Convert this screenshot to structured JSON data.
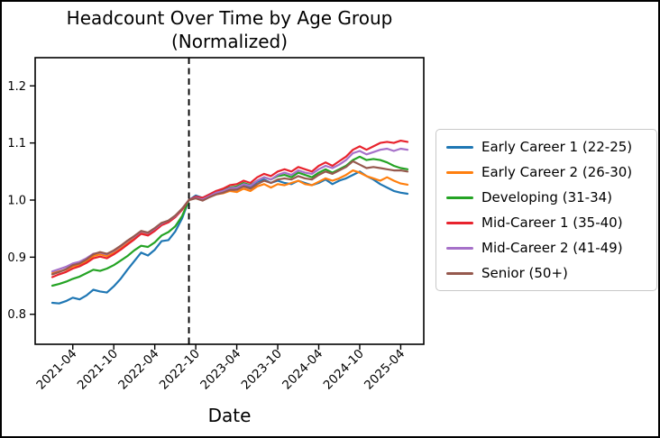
{
  "chart_data": {
    "type": "line",
    "title": "Headcount Over Time by Age Group",
    "subtitle": "(Normalized)",
    "xlabel": "Date",
    "ylabel": "",
    "ylim": [
      0.75,
      1.25
    ],
    "yticks": [
      0.8,
      0.9,
      1.0,
      1.1,
      1.2
    ],
    "xticks": {
      "labels": [
        "2021-04",
        "2021-10",
        "2022-04",
        "2022-10",
        "2023-04",
        "2023-10",
        "2024-04",
        "2024-10",
        "2025-04"
      ],
      "indices": [
        3,
        9,
        15,
        21,
        27,
        33,
        39,
        45,
        51
      ]
    },
    "grid": false,
    "legend_position": "center right, outside axes",
    "normalization_marker": {
      "style": "dashed vertical line",
      "color": "#000000",
      "x": "2022-09"
    },
    "x": [
      "2021-01",
      "2021-02",
      "2021-03",
      "2021-04",
      "2021-05",
      "2021-06",
      "2021-07",
      "2021-08",
      "2021-09",
      "2021-10",
      "2021-11",
      "2021-12",
      "2022-01",
      "2022-02",
      "2022-03",
      "2022-04",
      "2022-05",
      "2022-06",
      "2022-07",
      "2022-08",
      "2022-09",
      "2022-10",
      "2022-11",
      "2022-12",
      "2023-01",
      "2023-02",
      "2023-03",
      "2023-04",
      "2023-05",
      "2023-06",
      "2023-07",
      "2023-08",
      "2023-09",
      "2023-10",
      "2023-11",
      "2023-12",
      "2024-01",
      "2024-02",
      "2024-03",
      "2024-04",
      "2024-05",
      "2024-06",
      "2024-07",
      "2024-08",
      "2024-09",
      "2024-10",
      "2024-11",
      "2024-12",
      "2025-01",
      "2025-02",
      "2025-03",
      "2025-04",
      "2025-05"
    ],
    "series": [
      {
        "name": "Early Career 1 (22-25)",
        "color": "#1f77b4",
        "values": [
          0.82,
          0.819,
          0.823,
          0.829,
          0.826,
          0.833,
          0.843,
          0.84,
          0.838,
          0.849,
          0.862,
          0.878,
          0.893,
          0.908,
          0.903,
          0.913,
          0.928,
          0.93,
          0.945,
          0.968,
          1.0,
          1.008,
          1.004,
          1.01,
          1.016,
          1.018,
          1.022,
          1.02,
          1.026,
          1.022,
          1.032,
          1.036,
          1.03,
          1.034,
          1.03,
          1.028,
          1.034,
          1.03,
          1.026,
          1.03,
          1.036,
          1.028,
          1.034,
          1.038,
          1.044,
          1.05,
          1.042,
          1.036,
          1.028,
          1.022,
          1.016,
          1.013,
          1.011
        ]
      },
      {
        "name": "Early Career 2 (26-30)",
        "color": "#ff7f0e",
        "values": [
          0.872,
          0.875,
          0.878,
          0.884,
          0.886,
          0.893,
          0.902,
          0.905,
          0.902,
          0.908,
          0.916,
          0.926,
          0.934,
          0.944,
          0.941,
          0.948,
          0.958,
          0.963,
          0.972,
          0.984,
          1.0,
          1.004,
          1.0,
          1.006,
          1.01,
          1.012,
          1.016,
          1.014,
          1.02,
          1.016,
          1.024,
          1.028,
          1.022,
          1.028,
          1.026,
          1.03,
          1.034,
          1.028,
          1.026,
          1.032,
          1.038,
          1.034,
          1.038,
          1.044,
          1.052,
          1.048,
          1.042,
          1.038,
          1.034,
          1.04,
          1.034,
          1.029,
          1.027
        ]
      },
      {
        "name": "Developing (31-34)",
        "color": "#24a324",
        "values": [
          0.85,
          0.853,
          0.857,
          0.862,
          0.866,
          0.872,
          0.878,
          0.876,
          0.88,
          0.886,
          0.894,
          0.902,
          0.912,
          0.92,
          0.918,
          0.926,
          0.938,
          0.944,
          0.954,
          0.972,
          1.0,
          1.005,
          1.002,
          1.008,
          1.014,
          1.018,
          1.022,
          1.024,
          1.03,
          1.026,
          1.034,
          1.04,
          1.036,
          1.042,
          1.044,
          1.04,
          1.048,
          1.044,
          1.04,
          1.048,
          1.054,
          1.048,
          1.054,
          1.06,
          1.07,
          1.076,
          1.07,
          1.072,
          1.07,
          1.066,
          1.06,
          1.056,
          1.054
        ]
      },
      {
        "name": "Mid-Career 1 (35-40)",
        "color": "#e8232d",
        "values": [
          0.865,
          0.87,
          0.874,
          0.88,
          0.884,
          0.89,
          0.898,
          0.901,
          0.898,
          0.905,
          0.913,
          0.922,
          0.931,
          0.941,
          0.938,
          0.946,
          0.956,
          0.961,
          0.97,
          0.983,
          1.0,
          1.006,
          1.004,
          1.01,
          1.016,
          1.02,
          1.026,
          1.028,
          1.034,
          1.03,
          1.04,
          1.046,
          1.042,
          1.05,
          1.054,
          1.05,
          1.058,
          1.054,
          1.05,
          1.06,
          1.066,
          1.06,
          1.068,
          1.076,
          1.088,
          1.094,
          1.088,
          1.094,
          1.1,
          1.102,
          1.1,
          1.104,
          1.102
        ]
      },
      {
        "name": "Mid-Career 2 (41-49)",
        "color": "#a671c9",
        "values": [
          0.875,
          0.879,
          0.883,
          0.889,
          0.892,
          0.898,
          0.906,
          0.908,
          0.905,
          0.911,
          0.919,
          0.928,
          0.936,
          0.945,
          0.942,
          0.95,
          0.959,
          0.964,
          0.972,
          0.985,
          1.0,
          1.004,
          1.001,
          1.007,
          1.013,
          1.016,
          1.021,
          1.022,
          1.028,
          1.025,
          1.034,
          1.04,
          1.036,
          1.044,
          1.048,
          1.044,
          1.052,
          1.048,
          1.046,
          1.054,
          1.06,
          1.056,
          1.062,
          1.07,
          1.082,
          1.086,
          1.08,
          1.084,
          1.088,
          1.09,
          1.086,
          1.09,
          1.088
        ]
      },
      {
        "name": "Senior (50+)",
        "color": "#96594e",
        "values": [
          0.87,
          0.874,
          0.879,
          0.886,
          0.889,
          0.896,
          0.905,
          0.909,
          0.906,
          0.912,
          0.92,
          0.929,
          0.937,
          0.946,
          0.943,
          0.951,
          0.96,
          0.964,
          0.973,
          0.985,
          1.0,
          1.003,
          0.999,
          1.005,
          1.01,
          1.013,
          1.018,
          1.018,
          1.024,
          1.02,
          1.028,
          1.034,
          1.03,
          1.036,
          1.038,
          1.036,
          1.042,
          1.038,
          1.036,
          1.044,
          1.05,
          1.046,
          1.052,
          1.058,
          1.068,
          1.062,
          1.056,
          1.058,
          1.056,
          1.054,
          1.052,
          1.052,
          1.05
        ]
      }
    ]
  }
}
